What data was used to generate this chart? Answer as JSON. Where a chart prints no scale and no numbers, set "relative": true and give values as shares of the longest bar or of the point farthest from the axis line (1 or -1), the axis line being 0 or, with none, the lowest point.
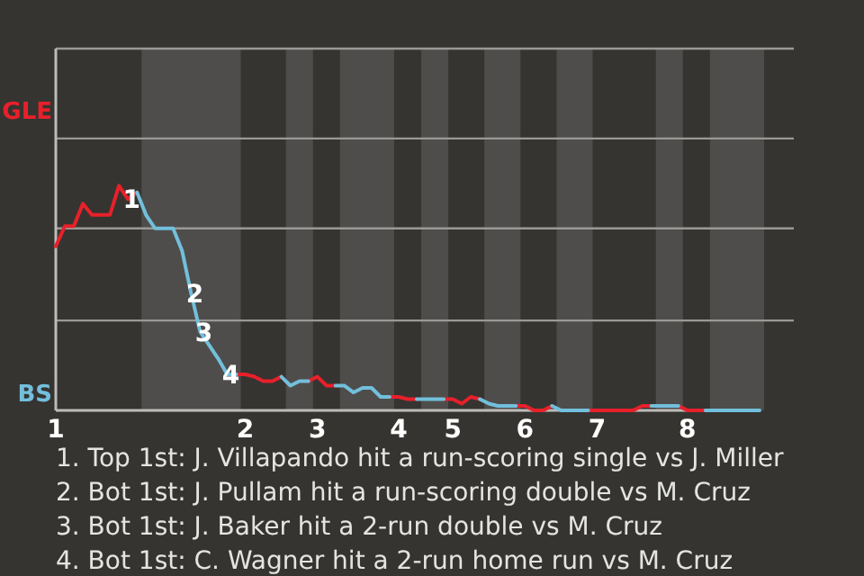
{
  "chart_data": {
    "type": "line",
    "relative": true,
    "categories": [
      "1",
      null,
      null,
      null,
      null,
      null,
      null,
      null,
      null,
      null,
      null,
      null,
      null,
      null,
      null,
      null,
      null,
      null,
      null,
      null,
      null,
      "2",
      null,
      null,
      null,
      null,
      null,
      null,
      null,
      "3",
      null,
      null,
      null,
      null,
      null,
      null,
      null,
      null,
      "4",
      null,
      null,
      null,
      null,
      null,
      "5",
      null,
      null,
      null,
      null,
      null,
      null,
      null,
      "6",
      null,
      null,
      null,
      null,
      null,
      null,
      null,
      "7",
      null,
      null,
      null,
      null,
      null,
      null,
      null,
      null,
      null,
      "8",
      null,
      null,
      null,
      null,
      null,
      null,
      null,
      null
    ],
    "marker": "none",
    "line_style": "solid",
    "ref_lines": [
      {
        "axis": "y",
        "value": 0.4,
        "color": "#9a9996"
      },
      {
        "axis": "y",
        "value": 0.81,
        "color": "#9a9996"
      },
      {
        "axis": "y",
        "value": 1.21,
        "color": "#9a9996"
      }
    ],
    "series": [
      {
        "color": "#e8202a",
        "values": [
          0.73,
          0.82,
          0.82,
          0.92,
          0.87,
          0.87,
          0.87,
          1,
          0.94,
          0.97,
          null,
          null,
          null,
          null,
          null,
          null,
          null,
          null,
          null,
          null,
          0.16,
          0.16,
          0.15,
          0.13,
          0.13,
          0.15,
          null,
          null,
          0.13,
          0.15,
          0.11,
          0.11,
          null,
          null,
          null,
          null,
          null,
          0.06,
          0.06,
          0.05,
          0.05,
          null,
          null,
          0.05,
          0.05,
          0.03,
          0.06,
          0.05,
          null,
          null,
          null,
          0.02,
          0.02,
          0,
          0,
          0.02,
          null,
          null,
          null,
          0,
          0,
          0,
          0,
          0,
          0,
          0.02,
          0.02,
          null,
          null,
          0.02,
          0,
          0,
          0,
          null,
          null,
          null,
          null,
          null,
          null
        ]
      },
      {
        "color": "#72bfdc",
        "values": [
          null,
          null,
          null,
          null,
          null,
          null,
          null,
          null,
          null,
          0.97,
          0.87,
          0.81,
          0.81,
          0.81,
          0.71,
          0.52,
          0.35,
          0.29,
          0.23,
          0.16,
          0.16,
          null,
          null,
          null,
          null,
          0.15,
          0.11,
          0.13,
          0.13,
          null,
          null,
          0.11,
          0.11,
          0.08,
          0.1,
          0.1,
          0.06,
          0.06,
          null,
          null,
          0.05,
          0.05,
          0.05,
          0.05,
          null,
          null,
          null,
          0.05,
          0.03,
          0.02,
          0.02,
          0.02,
          null,
          null,
          null,
          0.02,
          0,
          0,
          0,
          0,
          null,
          null,
          null,
          null,
          null,
          null,
          0.02,
          0.02,
          0.02,
          0.02,
          null,
          null,
          0,
          0,
          0,
          0,
          0,
          0,
          0
        ]
      }
    ],
    "annotations": [
      "GLE",
      "BS",
      {
        "text": "1",
        "y": 0.94
      },
      {
        "text": "2",
        "y": 0.52
      },
      {
        "text": "3",
        "y": 0.35
      },
      {
        "text": "4",
        "y": 0.16
      },
      "1. Top 1st: J. Villapando hit a run-scoring single vs J. Miller",
      "2. Bot 1st: J. Pullam hit a run-scoring double vs M. Cruz",
      "3. Bot 1st: J. Baker hit a 2-run double vs M. Cruz",
      "4. Bot 1st: C. Wagner hit a 2-run home run vs M. Cruz"
    ]
  }
}
